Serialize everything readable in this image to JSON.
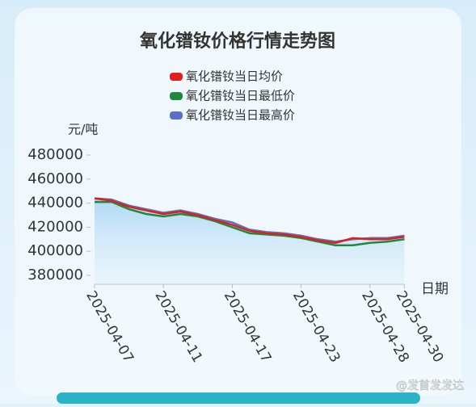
{
  "chart_data": {
    "type": "line",
    "title": "氧化镨钕价格行情走势图",
    "y_label": "元/吨",
    "x_label": "日期",
    "categories": [
      "2025-04-07",
      null,
      null,
      null,
      "2025-04-11",
      null,
      null,
      null,
      "2025-04-17",
      null,
      null,
      null,
      "2025-04-23",
      null,
      null,
      null,
      "2025-04-28",
      null,
      "2025-04-30"
    ],
    "series": [
      {
        "name": "氧化镨钕当日均价",
        "color": "#e0201c",
        "values": [
          444000,
          442000,
          437000,
          434000,
          431000,
          433000,
          430000,
          426000,
          422000,
          417000,
          415000,
          414000,
          412000,
          409000,
          407000,
          411000,
          410000,
          410000,
          412000
        ]
      },
      {
        "name": "氧化镨钕当日最低价",
        "color": "#1f8a3c",
        "values": [
          441000,
          441000,
          435000,
          431000,
          429000,
          431000,
          429000,
          425000,
          420000,
          415000,
          414000,
          413000,
          411000,
          408000,
          405000,
          405000,
          407000,
          408000,
          410000
        ]
      },
      {
        "name": "氧化镨钕当日最高价",
        "color": "#5b6fc8",
        "values": [
          444000,
          443000,
          438000,
          435000,
          432000,
          434000,
          431000,
          427000,
          424000,
          418000,
          416000,
          415000,
          413000,
          410000,
          408000,
          410000,
          411000,
          411000,
          413000
        ]
      }
    ],
    "ylim": [
      380000,
      480000
    ],
    "yticks": [
      380000,
      400000,
      420000,
      440000,
      460000,
      480000
    ],
    "watermark": "@发首发发达"
  }
}
